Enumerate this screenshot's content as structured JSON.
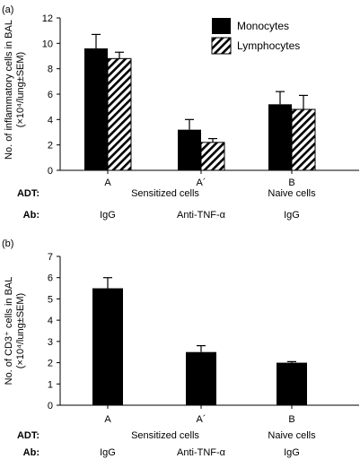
{
  "chart_data": [
    {
      "panel_label": "(a)",
      "type": "bar",
      "ylabel_line1": "No. of inflammatory cells in BAL",
      "ylabel_line2": "(×10⁴/lung±SEM)",
      "ylim": [
        0,
        12
      ],
      "yticks": [
        "0",
        "2",
        "4",
        "6",
        "8",
        "10",
        "12"
      ],
      "categories": [
        "A",
        "A´",
        "B"
      ],
      "series": [
        {
          "name": "Monocytes",
          "fill": "solid",
          "values": [
            9.6,
            3.2,
            5.2
          ],
          "errors": [
            1.1,
            0.8,
            1.0
          ]
        },
        {
          "name": "Lymphocytes",
          "fill": "hatched",
          "values": [
            8.8,
            2.2,
            4.8
          ],
          "errors": [
            0.5,
            0.3,
            1.1
          ]
        }
      ],
      "legend_position": "top-right",
      "rows": {
        "adt_label": "ADT:",
        "ab_label": "Ab:",
        "adt": [
          "Sensitized cells",
          "Naive cells"
        ],
        "ab": [
          "IgG",
          "Anti-TNF-α",
          "IgG"
        ]
      }
    },
    {
      "panel_label": "(b)",
      "type": "bar",
      "ylabel_line1": "No. of CD3⁺ cells in BAL",
      "ylabel_line2": "(×10⁴/lung±SEM)",
      "ylim": [
        0,
        7
      ],
      "yticks": [
        "0",
        "1",
        "2",
        "3",
        "4",
        "5",
        "6",
        "7"
      ],
      "categories": [
        "A",
        "A´",
        "B"
      ],
      "series": [
        {
          "name": "",
          "fill": "solid",
          "values": [
            5.5,
            2.5,
            2.0
          ],
          "errors": [
            0.5,
            0.3,
            0.05
          ]
        }
      ],
      "rows": {
        "adt_label": "ADT:",
        "ab_label": "Ab:",
        "adt": [
          "Sensitized cells",
          "Naive cells"
        ],
        "ab": [
          "IgG",
          "Anti-TNF-α",
          "IgG"
        ]
      }
    }
  ]
}
